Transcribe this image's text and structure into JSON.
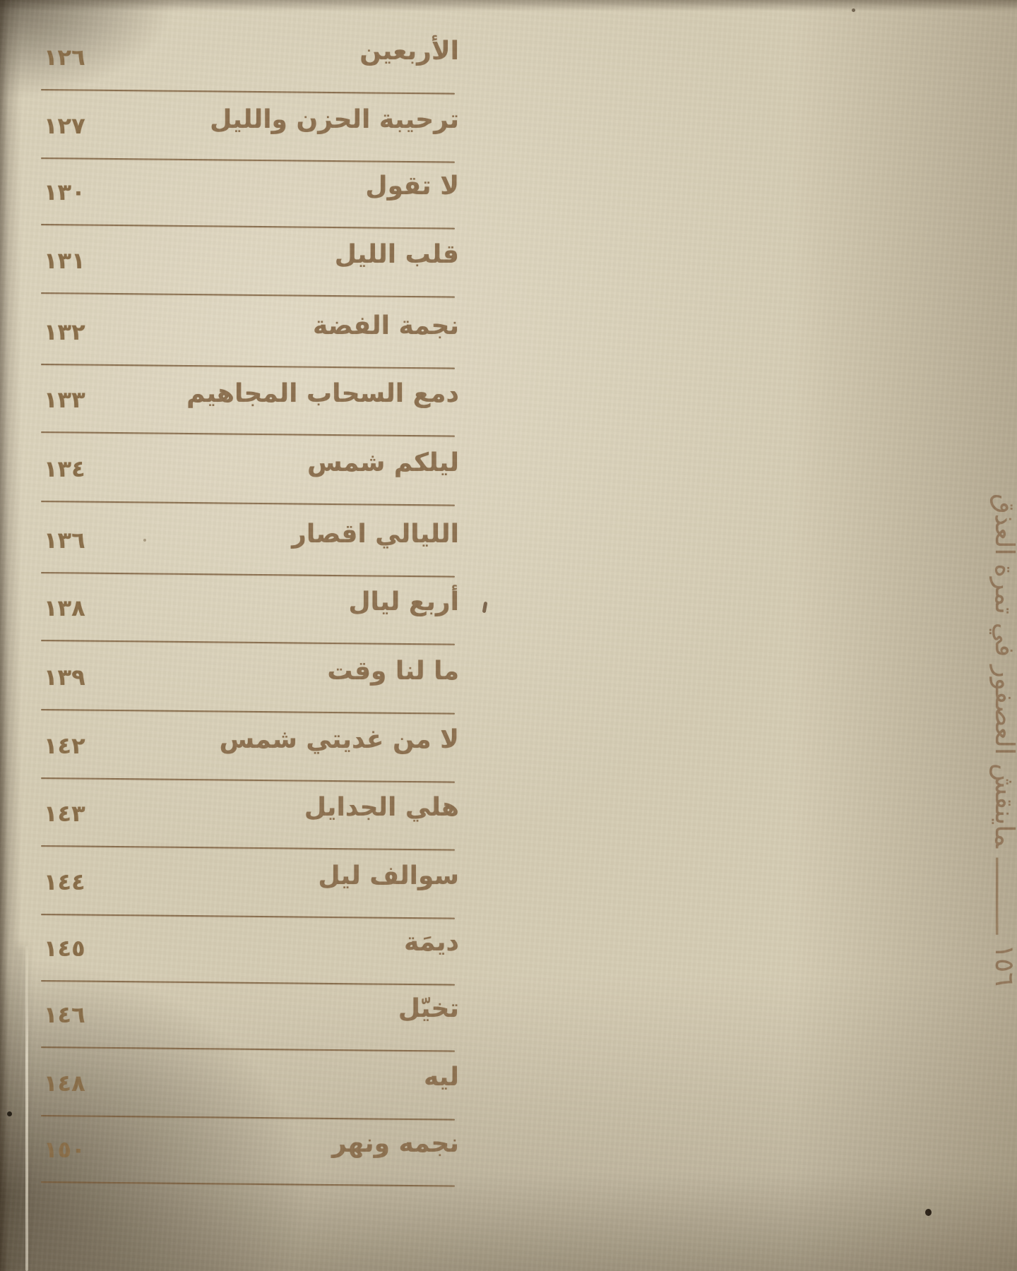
{
  "page": {
    "toc_entries": [
      {
        "title": "الأربعين",
        "page": "١٢٦"
      },
      {
        "title": "ترحيبة الحزن والليل",
        "page": "١٢٧"
      },
      {
        "title": "لا تقول",
        "page": "١٣٠"
      },
      {
        "title": "قلب الليل",
        "page": "١٣١"
      },
      {
        "title": "نجمة الفضة",
        "page": "١٣٢"
      },
      {
        "title": "دمع السحاب المجاهيم",
        "page": "١٣٣"
      },
      {
        "title": "ليلكم شمس",
        "page": "١٣٤"
      },
      {
        "title": "الليالي اقصار",
        "page": "١٣٦"
      },
      {
        "title": "أربع ليال",
        "page": "١٣٨"
      },
      {
        "title": "ما لنا وقت",
        "page": "١٣٩"
      },
      {
        "title": "لا من غديتي شمس",
        "page": "١٤٢"
      },
      {
        "title": "هلي الجدايل",
        "page": "١٤٣"
      },
      {
        "title": "سوالف ليل",
        "page": "١٤٤"
      },
      {
        "title": "ديمَة",
        "page": "١٤٥"
      },
      {
        "title": "تخيّل",
        "page": "١٤٦"
      },
      {
        "title": "ليه",
        "page": "١٤٨"
      },
      {
        "title": "نجمه ونهر",
        "page": "١٥٠"
      }
    ],
    "sidebar": {
      "page_number": "١٥٦",
      "dash": "ــــــــــ",
      "book_title": "ماينقش العصفور في تمرة العذق"
    },
    "colors": {
      "paper": "#d5ccb4",
      "ink": "#8d7150",
      "rule": "#7a5b39"
    }
  }
}
